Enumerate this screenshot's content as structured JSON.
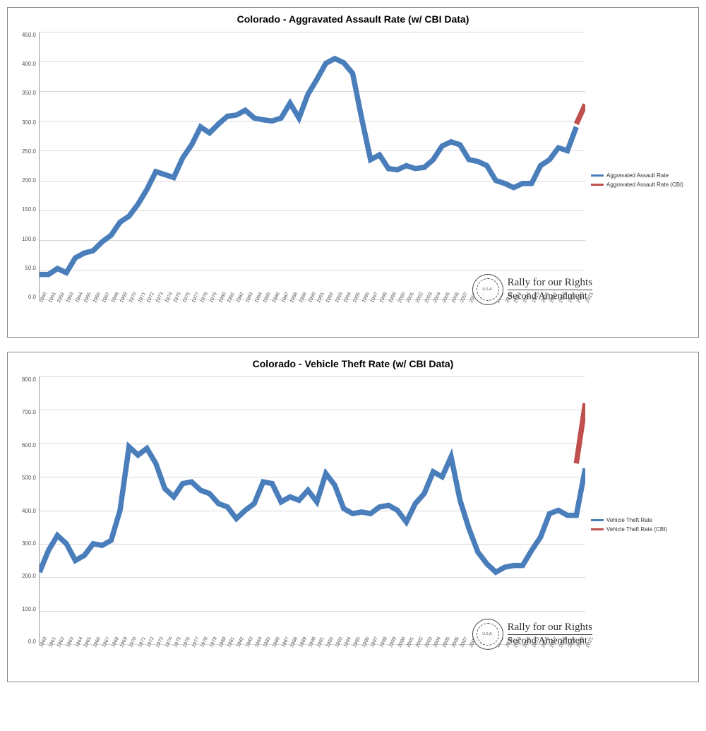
{
  "charts": [
    {
      "title": "Colorado - Aggravated Assault Rate (w/ CBI Data)",
      "title_fontsize": 14,
      "type": "line",
      "background_color": "#ffffff",
      "grid_color": "#d9d9d9",
      "border_color": "#888888",
      "ylim": [
        0,
        450
      ],
      "ytick_step": 50,
      "yticks": [
        "0.0",
        "50.0",
        "100.0",
        "150.0",
        "200.0",
        "250.0",
        "300.0",
        "350.0",
        "400.0",
        "450.0"
      ],
      "xlabels": [
        "1960",
        "1961",
        "1962",
        "1963",
        "1964",
        "1965",
        "1966",
        "1967",
        "1968",
        "1969",
        "1970",
        "1971",
        "1972",
        "1973",
        "1974",
        "1975",
        "1976",
        "1977",
        "1978",
        "1979",
        "1980",
        "1981",
        "1982",
        "1983",
        "1984",
        "1985",
        "1986",
        "1987",
        "1988",
        "1989",
        "1990",
        "1991",
        "1992",
        "1993",
        "1994",
        "1995",
        "1996",
        "1997",
        "1998",
        "1999",
        "2000",
        "2001",
        "2002",
        "2003",
        "2004",
        "2005",
        "2006",
        "2007",
        "2008",
        "2009",
        "2010",
        "2011",
        "2012",
        "2013",
        "2014",
        "2015",
        "2016",
        "2017",
        "2018",
        "2019",
        "2020",
        "2021"
      ],
      "label_fontsize": 8,
      "axis_color": "#999999",
      "legend": [
        {
          "label": "Aggravated Assault Rate",
          "color": "#4a7ebb"
        },
        {
          "label": "Aggravated Assault Rate (CBI)",
          "color": "#c0504d"
        }
      ],
      "series": [
        {
          "name": "Aggravated Assault Rate",
          "color": "#4a7ebb",
          "line_width": 2.5,
          "values": [
            42,
            42,
            52,
            45,
            70,
            78,
            82,
            97,
            108,
            130,
            140,
            160,
            185,
            215,
            210,
            205,
            238,
            260,
            290,
            280,
            295,
            308,
            310,
            318,
            305,
            302,
            300,
            305,
            330,
            305,
            345,
            370,
            397,
            405,
            398,
            380,
            305,
            235,
            243,
            220,
            218,
            225,
            220,
            222,
            235,
            258,
            265,
            260,
            235,
            232,
            225,
            200,
            195,
            188,
            195,
            195,
            225,
            235,
            255,
            250,
            290,
            null
          ]
        },
        {
          "name": "Aggravated Assault Rate (CBI)",
          "color": "#c0504d",
          "line_width": 2.5,
          "values": [
            null,
            null,
            null,
            null,
            null,
            null,
            null,
            null,
            null,
            null,
            null,
            null,
            null,
            null,
            null,
            null,
            null,
            null,
            null,
            null,
            null,
            null,
            null,
            null,
            null,
            null,
            null,
            null,
            null,
            null,
            null,
            null,
            null,
            null,
            null,
            null,
            null,
            null,
            null,
            null,
            null,
            null,
            null,
            null,
            null,
            null,
            null,
            null,
            null,
            null,
            null,
            null,
            null,
            null,
            null,
            null,
            null,
            null,
            null,
            null,
            295,
            328
          ]
        }
      ],
      "watermark": {
        "line1": "Rally for our Rights",
        "line2": "Second Amendment",
        "seal_text": "U.S.A."
      }
    },
    {
      "title": "Colorado - Vehicle Theft Rate (w/ CBI Data)",
      "title_fontsize": 14,
      "type": "line",
      "background_color": "#ffffff",
      "grid_color": "#d9d9d9",
      "border_color": "#888888",
      "ylim": [
        0,
        800
      ],
      "ytick_step": 100,
      "yticks": [
        "0.0",
        "100.0",
        "200.0",
        "300.0",
        "400.0",
        "500.0",
        "600.0",
        "700.0",
        "800.0"
      ],
      "xlabels": [
        "1960",
        "1961",
        "1962",
        "1963",
        "1964",
        "1965",
        "1966",
        "1967",
        "1968",
        "1969",
        "1970",
        "1971",
        "1972",
        "1973",
        "1974",
        "1975",
        "1976",
        "1977",
        "1978",
        "1979",
        "1980",
        "1981",
        "1982",
        "1983",
        "1984",
        "1985",
        "1986",
        "1987",
        "1988",
        "1989",
        "1990",
        "1991",
        "1992",
        "1993",
        "1994",
        "1995",
        "1996",
        "1997",
        "1998",
        "1999",
        "2000",
        "2001",
        "2002",
        "2003",
        "2004",
        "2005",
        "2006",
        "2007",
        "2008",
        "2009",
        "2010",
        "2011",
        "2012",
        "2013",
        "2014",
        "2015",
        "2016",
        "2017",
        "2018",
        "2019",
        "2020",
        "2021"
      ],
      "label_fontsize": 8,
      "axis_color": "#999999",
      "legend": [
        {
          "label": "Vehicle Theft Rate",
          "color": "#4a7ebb"
        },
        {
          "label": "Vehicle Theft Rate (CBI)",
          "color": "#c0504d"
        }
      ],
      "series": [
        {
          "name": "Vehicle Theft Rate",
          "color": "#4a7ebb",
          "line_width": 2.5,
          "values": [
            215,
            280,
            325,
            300,
            250,
            265,
            300,
            295,
            310,
            400,
            590,
            565,
            585,
            540,
            465,
            440,
            480,
            485,
            460,
            450,
            420,
            410,
            375,
            400,
            420,
            485,
            480,
            425,
            440,
            430,
            460,
            425,
            510,
            475,
            405,
            390,
            395,
            390,
            410,
            415,
            400,
            365,
            420,
            450,
            515,
            500,
            560,
            430,
            345,
            275,
            240,
            215,
            230,
            235,
            235,
            280,
            320,
            390,
            400,
            385,
            385,
            525
          ]
        },
        {
          "name": "Vehicle Theft Rate (CBI)",
          "color": "#c0504d",
          "line_width": 2.5,
          "values": [
            null,
            null,
            null,
            null,
            null,
            null,
            null,
            null,
            null,
            null,
            null,
            null,
            null,
            null,
            null,
            null,
            null,
            null,
            null,
            null,
            null,
            null,
            null,
            null,
            null,
            null,
            null,
            null,
            null,
            null,
            null,
            null,
            null,
            null,
            null,
            null,
            null,
            null,
            null,
            null,
            null,
            null,
            null,
            null,
            null,
            null,
            null,
            null,
            null,
            null,
            null,
            null,
            null,
            null,
            null,
            null,
            null,
            null,
            null,
            null,
            540,
            720
          ]
        }
      ],
      "watermark": {
        "line1": "Rally for our Rights",
        "line2": "Second Amendment",
        "seal_text": "U.S.A."
      }
    }
  ]
}
